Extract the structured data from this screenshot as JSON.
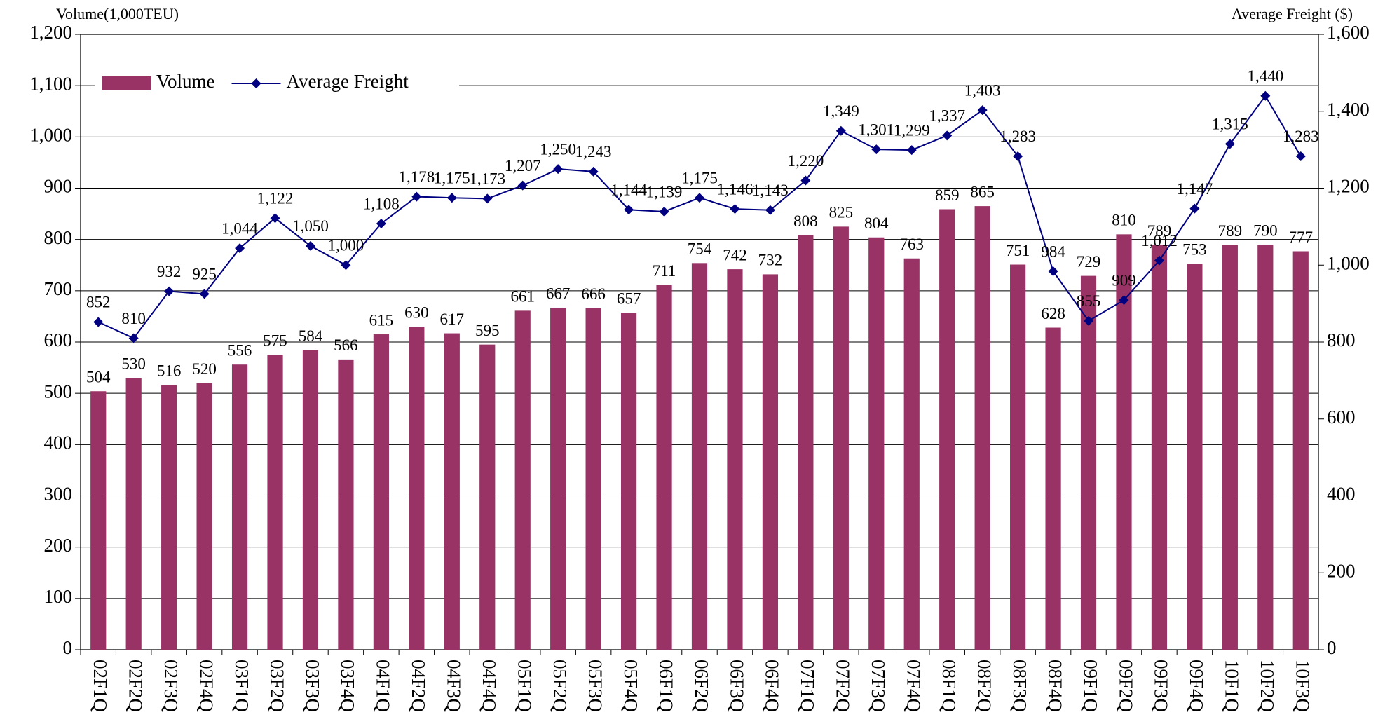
{
  "chart_data": {
    "type": "bar",
    "ylabel": "Volume(1,000TEU)",
    "y2label": "Average Freight ($)",
    "categories": [
      "02F1Q",
      "02F2Q",
      "02F3Q",
      "02F4Q",
      "03F1Q",
      "03F2Q",
      "03F3Q",
      "03F4Q",
      "04F1Q",
      "04F2Q",
      "04F3Q",
      "04F4Q",
      "05F1Q",
      "05F2Q",
      "05F3Q",
      "05F4Q",
      "06F1Q",
      "06F2Q",
      "06F3Q",
      "06F4Q",
      "07F1Q",
      "07F2Q",
      "07F3Q",
      "07F4Q",
      "08F1Q",
      "08F2Q",
      "08F3Q",
      "08F4Q",
      "09F1Q",
      "09F2Q",
      "09F3Q",
      "09F4Q",
      "10F1Q",
      "10F2Q",
      "10F3Q"
    ],
    "series": [
      {
        "name": "Volume",
        "type": "bar",
        "color": "#993366",
        "values": [
          504,
          530,
          516,
          520,
          556,
          575,
          584,
          566,
          615,
          630,
          617,
          595,
          661,
          667,
          666,
          657,
          711,
          754,
          742,
          732,
          808,
          825,
          804,
          763,
          859,
          865,
          751,
          628,
          729,
          810,
          789,
          753,
          789,
          790,
          777
        ]
      },
      {
        "name": "Average Freight",
        "type": "line",
        "axis": "y2",
        "color": "#000080",
        "values": [
          852,
          810,
          932,
          925,
          1044,
          1122,
          1050,
          1000,
          1108,
          1178,
          1175,
          1173,
          1207,
          1250,
          1243,
          1144,
          1139,
          1175,
          1146,
          1143,
          1220,
          1349,
          1301,
          1299,
          1337,
          1403,
          1283,
          984,
          855,
          909,
          1012,
          1147,
          1315,
          1440,
          1283
        ],
        "value_labels": [
          "852",
          "810",
          "932",
          "925",
          "1,044",
          "1,122",
          "1,050",
          "1,000",
          "1,108",
          "1,178",
          "1,175",
          "1,173",
          "1,207",
          "1,250",
          "1,243",
          "1,144",
          "1,139",
          "1,175",
          "1,146",
          "1,143",
          "1,220",
          "1,349",
          "1,301",
          "1,299",
          "1,337",
          "1,403",
          "1,283",
          "984",
          "855",
          "909",
          "1,012",
          "1,147",
          "1,315",
          "1,440",
          "1,283"
        ]
      }
    ],
    "ylim": [
      0,
      1200
    ],
    "yticks": [
      0,
      100,
      200,
      300,
      400,
      500,
      600,
      700,
      800,
      900,
      {
        "value": 1000,
        "label": "1,000"
      },
      {
        "value": 1100,
        "label": "1,100"
      },
      {
        "value": 1200,
        "label": "1,200"
      }
    ],
    "y2lim": [
      0,
      1600
    ],
    "y2ticks": [
      0,
      200,
      400,
      600,
      800,
      {
        "value": 1000,
        "label": "1,000"
      },
      {
        "value": 1200,
        "label": "1,200"
      },
      {
        "value": 1400,
        "label": "1,400"
      },
      {
        "value": 1600,
        "label": "1,600"
      }
    ],
    "grid": true,
    "legend": "upper left"
  }
}
